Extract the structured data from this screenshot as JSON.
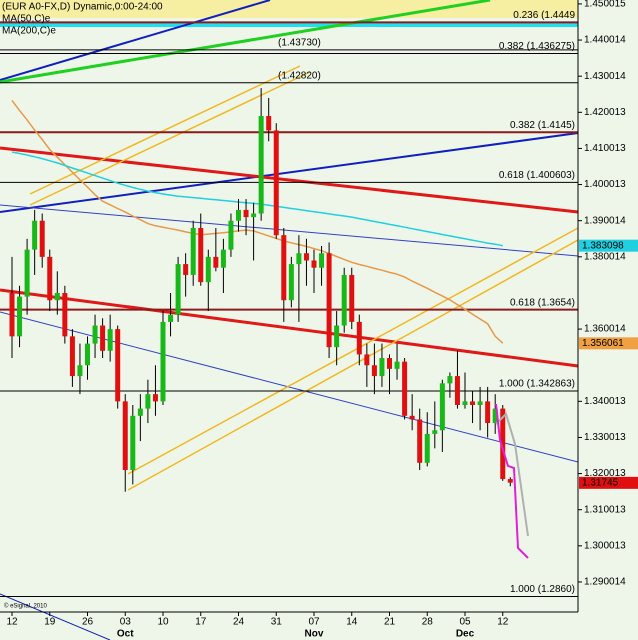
{
  "chart_data": {
    "type": "candlestick",
    "title": "(EUR A0-FX,D) Dynamic,0:00-24:00",
    "copyright": "© eSignal, 2010",
    "categories": [
      "12",
      null,
      null,
      null,
      null,
      "19",
      null,
      null,
      null,
      null,
      "26",
      null,
      null,
      null,
      null,
      "03",
      null,
      null,
      null,
      null,
      "10",
      null,
      null,
      null,
      null,
      "17",
      null,
      null,
      null,
      null,
      "24",
      null,
      null,
      null,
      null,
      "31",
      null,
      null,
      null,
      null,
      "07",
      null,
      null,
      null,
      null,
      "14",
      null,
      null,
      null,
      null,
      "21",
      null,
      null,
      null,
      null,
      "28",
      null,
      null,
      null,
      null,
      "05",
      null,
      null,
      null,
      null,
      "12",
      null
    ],
    "months": [
      null,
      null,
      null,
      null,
      null,
      null,
      null,
      null,
      null,
      null,
      null,
      null,
      null,
      null,
      null,
      "Oct",
      null,
      null,
      null,
      null,
      null,
      null,
      null,
      null,
      null,
      null,
      null,
      null,
      null,
      null,
      null,
      null,
      null,
      null,
      null,
      null,
      null,
      null,
      null,
      null,
      "Nov",
      null,
      null,
      null,
      null,
      null,
      null,
      null,
      null,
      null,
      null,
      null,
      null,
      null,
      null,
      null,
      null,
      null,
      null,
      null,
      "Dec",
      null,
      null,
      null,
      null,
      null,
      null
    ],
    "open": [
      1.37,
      1.358,
      1.369,
      1.382,
      1.39,
      1.38,
      1.368,
      1.37,
      1.358,
      1.347,
      1.35,
      1.356,
      1.361,
      1.354,
      1.36,
      1.34,
      1.321,
      1.336,
      1.338,
      1.342,
      1.34,
      1.362,
      1.364,
      1.378,
      1.375,
      1.388,
      1.373,
      1.38,
      1.377,
      1.382,
      1.39,
      1.393,
      1.391,
      1.392,
      1.419,
      1.415,
      1.386,
      1.368,
      1.378,
      1.381,
      1.379,
      1.377,
      1.381,
      1.355,
      1.361,
      1.375,
      1.362,
      1.353,
      1.35,
      1.347,
      1.352,
      1.349,
      1.351,
      1.336,
      1.335,
      1.323,
      1.331,
      1.332,
      1.345,
      1.347,
      1.339,
      1.34,
      1.339,
      1.34,
      1.334,
      1.338,
      1.3185
    ],
    "high": [
      1.38,
      1.372,
      1.385,
      1.393,
      1.392,
      1.382,
      1.376,
      1.372,
      1.36,
      1.356,
      1.358,
      1.364,
      1.363,
      1.364,
      1.361,
      1.342,
      1.339,
      1.342,
      1.346,
      1.35,
      1.365,
      1.37,
      1.38,
      1.381,
      1.39,
      1.392,
      1.382,
      1.388,
      1.385,
      1.392,
      1.396,
      1.396,
      1.395,
      1.4267,
      1.424,
      1.417,
      1.388,
      1.38,
      1.386,
      1.385,
      1.382,
      1.383,
      1.384,
      1.365,
      1.377,
      1.377,
      1.364,
      1.356,
      1.356,
      1.356,
      1.353,
      1.356,
      1.352,
      1.342,
      1.338,
      1.337,
      1.34,
      1.346,
      1.348,
      1.354,
      1.348,
      1.343,
      1.344,
      1.344,
      1.342,
      1.339,
      1.319
    ],
    "low": [
      1.352,
      1.355,
      1.364,
      1.375,
      1.377,
      1.365,
      1.364,
      1.356,
      1.344,
      1.342,
      1.346,
      1.352,
      1.352,
      1.351,
      1.338,
      1.315,
      1.317,
      1.329,
      1.334,
      1.336,
      1.339,
      1.358,
      1.362,
      1.369,
      1.372,
      1.372,
      1.365,
      1.376,
      1.37,
      1.38,
      1.387,
      1.386,
      1.379,
      1.39,
      1.412,
      1.385,
      1.362,
      1.366,
      1.362,
      1.372,
      1.37,
      1.372,
      1.352,
      1.35,
      1.359,
      1.36,
      1.35,
      1.344,
      1.342,
      1.344,
      1.342,
      1.346,
      1.335,
      1.332,
      1.321,
      1.322,
      1.327,
      1.326,
      1.341,
      1.338,
      1.338,
      1.334,
      1.332,
      1.33,
      1.331,
      1.318,
      1.3165
    ],
    "close": [
      1.358,
      1.369,
      1.382,
      1.39,
      1.38,
      1.368,
      1.37,
      1.358,
      1.347,
      1.35,
      1.356,
      1.361,
      1.354,
      1.36,
      1.34,
      1.321,
      1.336,
      1.338,
      1.342,
      1.34,
      1.362,
      1.364,
      1.378,
      1.375,
      1.388,
      1.373,
      1.38,
      1.377,
      1.382,
      1.39,
      1.393,
      1.391,
      1.392,
      1.419,
      1.415,
      1.386,
      1.368,
      1.378,
      1.381,
      1.379,
      1.377,
      1.381,
      1.355,
      1.361,
      1.375,
      1.362,
      1.353,
      1.35,
      1.347,
      1.352,
      1.349,
      1.351,
      1.336,
      1.335,
      1.323,
      1.331,
      1.332,
      1.345,
      1.347,
      1.339,
      1.34,
      1.339,
      1.34,
      1.334,
      1.338,
      1.3185,
      1.3175
    ],
    "up_color": "#18b818",
    "down_color": "#e01010",
    "series": [
      {
        "name": "MA(50,C)e",
        "color": "#e89848",
        "values": [
          1.4233,
          1.4205,
          1.4179,
          1.4151,
          1.4125,
          1.4097,
          1.4076,
          1.4055,
          1.4034,
          1.4013,
          1.3993,
          1.3972,
          1.3954,
          1.3944,
          1.3934,
          1.3924,
          1.3913,
          1.3903,
          1.3892,
          1.3886,
          1.3882,
          1.3878,
          1.3874,
          1.3869,
          1.3865,
          1.3861,
          1.3863,
          1.3865,
          1.3867,
          1.3869,
          1.3872,
          1.3874,
          1.3872,
          1.3865,
          1.3858,
          1.3851,
          1.3844,
          1.3839,
          1.3834,
          1.3829,
          1.3823,
          1.3817,
          1.3809,
          1.3801,
          1.3793,
          1.3785,
          1.3779,
          1.3774,
          1.3768,
          1.3763,
          1.3757,
          1.3752,
          1.3744,
          1.3733,
          1.3723,
          1.3713,
          1.3702,
          1.3692,
          1.3681,
          1.3668,
          1.3655,
          1.3641,
          1.3628,
          1.3615,
          1.358,
          1.3561,
          null
        ]
      },
      {
        "name": "MA(200,C)e",
        "color": "#20d0e0",
        "values": [
          1.409,
          1.4086,
          1.4082,
          1.4077,
          1.4072,
          1.4066,
          1.406,
          1.4053,
          1.4046,
          1.4039,
          1.4032,
          1.4025,
          1.4018,
          1.4011,
          1.4004,
          1.3998,
          1.3992,
          1.3987,
          1.3982,
          1.3978,
          1.3974,
          1.3971,
          1.3968,
          1.3966,
          1.3964,
          1.3962,
          1.396,
          1.3958,
          1.3956,
          1.3954,
          1.3952,
          1.395,
          1.3948,
          1.3946,
          1.3943,
          1.394,
          1.3937,
          1.3934,
          1.3931,
          1.3928,
          1.3925,
          1.3922,
          1.3919,
          1.3916,
          1.3913,
          1.391,
          1.3906,
          1.3902,
          1.3898,
          1.3894,
          1.389,
          1.3886,
          1.3882,
          1.3878,
          1.3874,
          1.387,
          1.3866,
          1.3862,
          1.3858,
          1.3854,
          1.385,
          1.3846,
          1.3842,
          1.3838,
          1.3835,
          1.3831,
          null
        ]
      }
    ],
    "ylim": [
      1.2817,
      1.4511
    ],
    "yticks": [
      1.450015,
      1.440014,
      1.430014,
      1.420013,
      1.410013,
      1.400013,
      1.390014,
      1.380014,
      1.360014,
      1.340013,
      1.330013,
      1.320013,
      1.310013,
      1.300013,
      1.290014
    ],
    "price_labels": [
      {
        "value": 1.383098,
        "color": "#20d0e0"
      },
      {
        "value": 1.356061,
        "color": "#f0a040"
      },
      {
        "value": 1.31745,
        "color": "#e01010"
      }
    ],
    "levels": [
      {
        "label": "0.236 (1.4449",
        "value": 1.4449,
        "color": "#8b1a1a"
      },
      {
        "label": "(1.43730)",
        "value": 1.4373,
        "color": "#000000"
      },
      {
        "label": "0.382 (1.436275)",
        "value": 1.436275,
        "color": "#000000"
      },
      {
        "label": "(1.42820)",
        "value": 1.4282,
        "color": "#000000"
      },
      {
        "label": "0.382 (1.4145)",
        "value": 1.4145,
        "color": "#8b1a1a"
      },
      {
        "label": "0.618 (1.400603)",
        "value": 1.400603,
        "color": "#000000"
      },
      {
        "label": "0.618 (1.3654)",
        "value": 1.3654,
        "color": "#8b1a1a"
      },
      {
        "label": "1.000 (1.342863)",
        "value": 1.342863,
        "color": "#000000"
      },
      {
        "label": "1.000 (1.2860)",
        "value": 1.286,
        "color": "#000000"
      }
    ]
  }
}
